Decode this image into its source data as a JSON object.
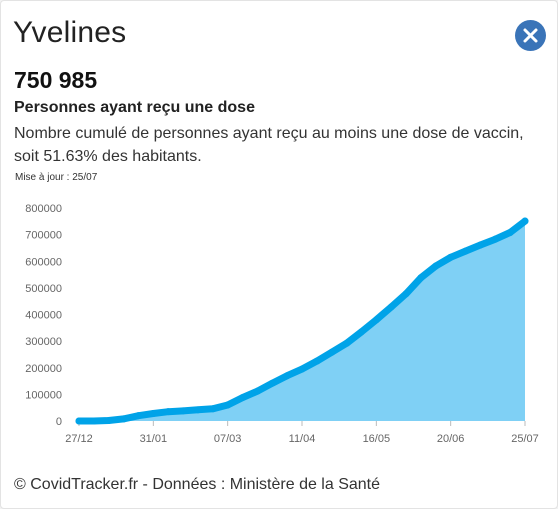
{
  "header": {
    "title": "Yvelines"
  },
  "summary": {
    "value": "750 985",
    "subtitle": "Personnes ayant reçu une dose",
    "description": "Nombre cumulé de personnes ayant reçu au moins une dose de vaccin, soit 51.63% des habitants.",
    "update": "Mise à jour : 25/07"
  },
  "footer": {
    "text": "© CovidTracker.fr - Données : Ministère de la Santé"
  },
  "colors": {
    "accent": "#3a74b8",
    "line": "#00a3e8",
    "area": "#7fd0f5"
  },
  "icons": {
    "close": "close-icon"
  },
  "chart_data": {
    "type": "area",
    "title": "",
    "xlabel": "",
    "ylabel": "",
    "ylim": [
      0,
      800000
    ],
    "yticks": [
      0,
      100000,
      200000,
      300000,
      400000,
      500000,
      600000,
      700000,
      800000
    ],
    "ytick_labels": [
      "0",
      "100000",
      "200000",
      "300000",
      "400000",
      "500000",
      "600000",
      "700000",
      "800000"
    ],
    "xtick_labels": [
      "27/12",
      "31/01",
      "07/03",
      "11/04",
      "16/05",
      "20/06",
      "25/07"
    ],
    "xlim": [
      "2020-12-27",
      "2021-07-25"
    ],
    "grid": false,
    "series": [
      {
        "x": [
          "2020-12-27",
          "2021-01-03",
          "2021-01-10",
          "2021-01-17",
          "2021-01-24",
          "2021-01-31",
          "2021-02-07",
          "2021-02-14",
          "2021-02-21",
          "2021-02-28",
          "2021-03-07",
          "2021-03-14",
          "2021-03-21",
          "2021-03-28",
          "2021-04-04",
          "2021-04-11",
          "2021-04-18",
          "2021-04-25",
          "2021-05-02",
          "2021-05-09",
          "2021-05-16",
          "2021-05-23",
          "2021-05-30",
          "2021-06-06",
          "2021-06-13",
          "2021-06-20",
          "2021-06-27",
          "2021-07-04",
          "2021-07-11",
          "2021-07-18",
          "2021-07-25"
        ],
        "values": [
          0,
          0,
          2000,
          8000,
          20000,
          28000,
          35000,
          38000,
          42000,
          46000,
          60000,
          88000,
          112000,
          142000,
          170000,
          195000,
          225000,
          258000,
          292000,
          335000,
          380000,
          428000,
          478000,
          538000,
          582000,
          615000,
          638000,
          661000,
          683000,
          708000,
          750985
        ]
      }
    ]
  }
}
